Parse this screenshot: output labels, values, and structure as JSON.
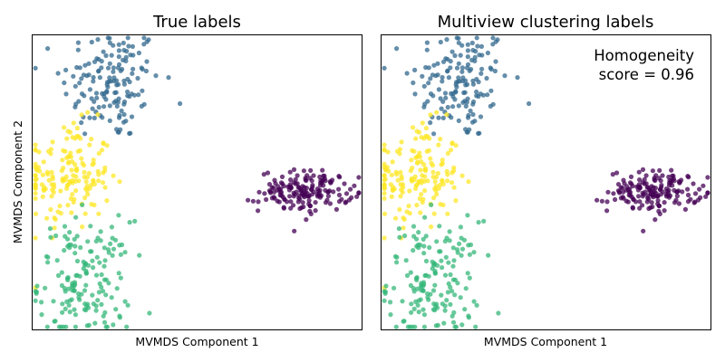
{
  "figure": {
    "shared_ylabel": "MVMDS Component 2"
  },
  "chart_data": [
    {
      "type": "scatter",
      "title": "True labels",
      "xlabel": "MVMDS Component 1",
      "ylabel": "MVMDS Component 2",
      "xticks": "none",
      "yticks": "none",
      "grid": false,
      "xlim": [
        0,
        100
      ],
      "ylim": [
        0,
        100
      ],
      "point_alpha": 0.75,
      "annotation": [],
      "clusters": [
        {
          "name": "",
          "color": "#31688e",
          "n": 150,
          "cx": 24,
          "cy": 84,
          "sx": 7.5,
          "sy": 10
        },
        {
          "name": "",
          "color": "#fde725",
          "n": 160,
          "cx": 11,
          "cy": 52,
          "sx": 6.5,
          "sy": 9
        },
        {
          "name": "",
          "color": "#35b779",
          "n": 160,
          "cx": 16,
          "cy": 17,
          "sx": 7,
          "sy": 10
        },
        {
          "name": "",
          "color": "#440154",
          "n": 170,
          "cx": 83,
          "cy": 47,
          "sx": 7,
          "sy": 3.5
        }
      ]
    },
    {
      "type": "scatter",
      "title": "Multiview clustering labels",
      "xlabel": "MVMDS Component 1",
      "ylabel": "",
      "xticks": "none",
      "yticks": "none",
      "grid": false,
      "xlim": [
        0,
        100
      ],
      "ylim": [
        0,
        100
      ],
      "point_alpha": 0.75,
      "annotation": [
        "Homogeneity",
        "score = 0.96"
      ],
      "clusters": [
        {
          "name": "",
          "color": "#31688e",
          "n": 150,
          "cx": 24,
          "cy": 84,
          "sx": 7.5,
          "sy": 10
        },
        {
          "name": "",
          "color": "#fde725",
          "n": 160,
          "cx": 11,
          "cy": 52,
          "sx": 6.5,
          "sy": 9
        },
        {
          "name": "",
          "color": "#35b779",
          "n": 160,
          "cx": 16,
          "cy": 17,
          "sx": 7,
          "sy": 10
        },
        {
          "name": "",
          "color": "#440154",
          "n": 170,
          "cx": 83,
          "cy": 47,
          "sx": 7,
          "sy": 3.5
        }
      ]
    }
  ]
}
